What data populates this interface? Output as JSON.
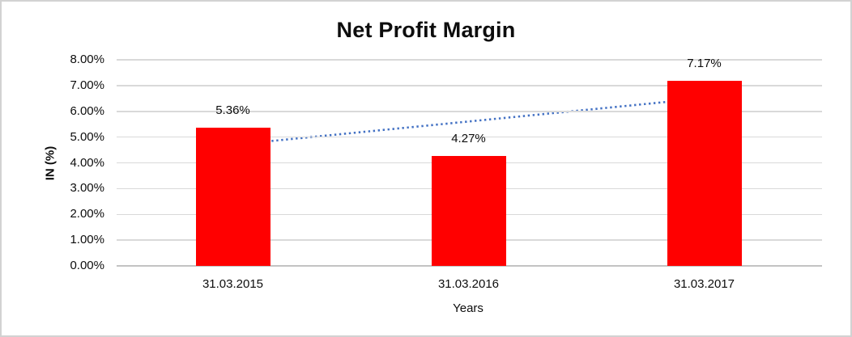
{
  "chart_data": {
    "type": "bar",
    "title": "Net Profit Margin",
    "xlabel": "Years",
    "ylabel": "IN (%)",
    "categories": [
      "31.03.2015",
      "31.03.2016",
      "31.03.2017"
    ],
    "values": [
      5.36,
      4.27,
      7.17
    ],
    "data_labels": [
      "5.36%",
      "4.27%",
      "7.17%"
    ],
    "ylim": [
      0,
      8
    ],
    "ytick_step": 1,
    "ytick_labels": [
      "0.00%",
      "1.00%",
      "2.00%",
      "3.00%",
      "4.00%",
      "5.00%",
      "6.00%",
      "7.00%",
      "8.00%"
    ],
    "grid": true,
    "legend": "none",
    "bar_color": "#ff0000",
    "gridline_color": "#d9d9d9",
    "axis_line_color": "#c3c3c3",
    "trendline": {
      "type": "linear",
      "style": "dotted",
      "color": "#4472c4",
      "start_value": 4.7,
      "end_value": 6.51
    }
  }
}
